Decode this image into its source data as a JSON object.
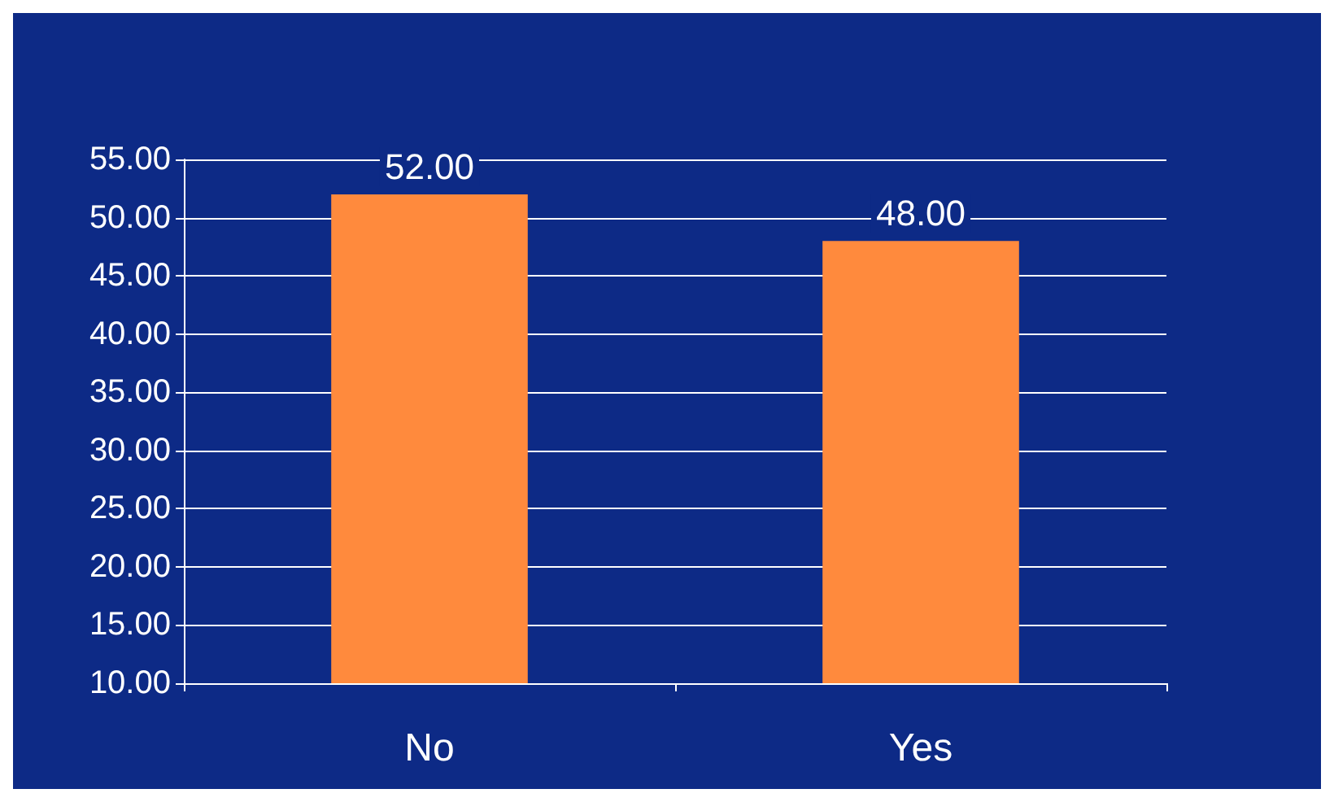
{
  "chart_data": {
    "type": "bar",
    "categories": [
      "No",
      "Yes"
    ],
    "values": [
      52,
      48
    ],
    "value_labels": [
      "52.00",
      "48.00"
    ],
    "color": "#ff8a3d",
    "ylim": [
      10,
      55
    ],
    "yticks": [
      {
        "value": 10,
        "label": "10.00"
      },
      {
        "value": 15,
        "label": "15.00"
      },
      {
        "value": 20,
        "label": "20.00"
      },
      {
        "value": 25,
        "label": "25.00"
      },
      {
        "value": 30,
        "label": "30.00"
      },
      {
        "value": 35,
        "label": "35.00"
      },
      {
        "value": 40,
        "label": "40.00"
      },
      {
        "value": 45,
        "label": "45.00"
      },
      {
        "value": 50,
        "label": "50.00"
      },
      {
        "value": 55,
        "label": "55.00"
      }
    ],
    "grid": "y"
  }
}
